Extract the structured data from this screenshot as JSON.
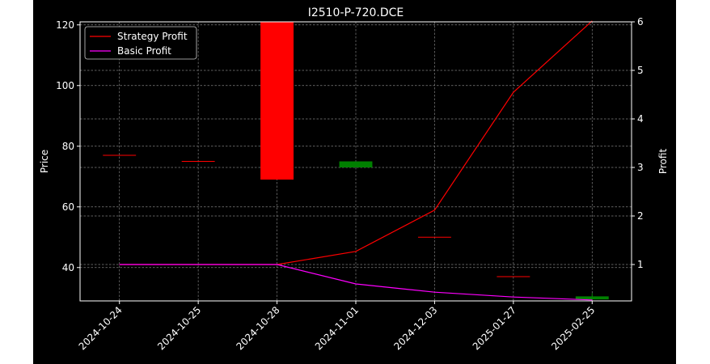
{
  "chart_data": {
    "type": "candlestick+line",
    "title": "I2510-P-720.DCE",
    "xlabel": "",
    "ylabel": "Price",
    "y2label": "Profit",
    "categories": [
      "2024-10-24",
      "2024-10-25",
      "2024-10-28",
      "2024-11-01",
      "2024-12-03",
      "2025-01-27",
      "2025-02-25"
    ],
    "ylim": [
      29,
      121
    ],
    "y2lim": [
      0.25,
      6.0
    ],
    "yticks": [
      40,
      60,
      80,
      100,
      120
    ],
    "y2ticks": [
      1,
      2,
      3,
      4,
      5,
      6
    ],
    "candles": [
      {
        "date": "2024-10-24",
        "open": 77,
        "close": 77,
        "high": 77,
        "low": 77,
        "color": "#ff0000"
      },
      {
        "date": "2024-10-25",
        "open": 75,
        "close": 75,
        "high": 75,
        "low": 75,
        "color": "#ff0000"
      },
      {
        "date": "2024-10-28",
        "open": 121,
        "close": 69,
        "high": 121,
        "low": 69,
        "color": "#ff0000"
      },
      {
        "date": "2024-11-01",
        "open": 73,
        "close": 75,
        "high": 75,
        "low": 73,
        "color": "#008000"
      },
      {
        "date": "2024-12-03",
        "open": 50,
        "close": 50,
        "high": 50,
        "low": 50,
        "color": "#ff0000"
      },
      {
        "date": "2025-01-27",
        "open": 37,
        "close": 37,
        "high": 37,
        "low": 37,
        "color": "#ff0000"
      },
      {
        "date": "2025-02-25",
        "open": 29.5,
        "close": 30.5,
        "high": 31.5,
        "low": 29.5,
        "color": "#008000"
      }
    ],
    "series": [
      {
        "name": "Strategy Profit",
        "axis": "right",
        "color": "#ff0000",
        "values": [
          1.0,
          1.0,
          1.0,
          1.27,
          2.12,
          4.55,
          6.02
        ]
      },
      {
        "name": "Basic Profit",
        "axis": "right",
        "color": "#ff00ff",
        "values": [
          1.0,
          1.0,
          1.0,
          0.6,
          0.43,
          0.33,
          0.27
        ]
      }
    ],
    "grid": true,
    "legend": "top-left",
    "background": "#000000"
  }
}
